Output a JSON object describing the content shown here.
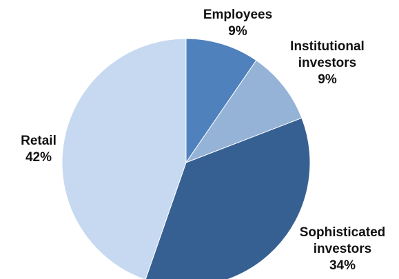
{
  "chart_data": {
    "type": "pie",
    "categories": [
      "Employees",
      "Institutional investors",
      "Sophisticated investors",
      "Retail"
    ],
    "values": [
      9,
      9,
      34,
      42
    ],
    "value_labels": [
      "9%",
      "9%",
      "34%",
      "42%"
    ],
    "colors": [
      "#4f81bd",
      "#95b3d7",
      "#376092",
      "#c6d9f1"
    ]
  }
}
